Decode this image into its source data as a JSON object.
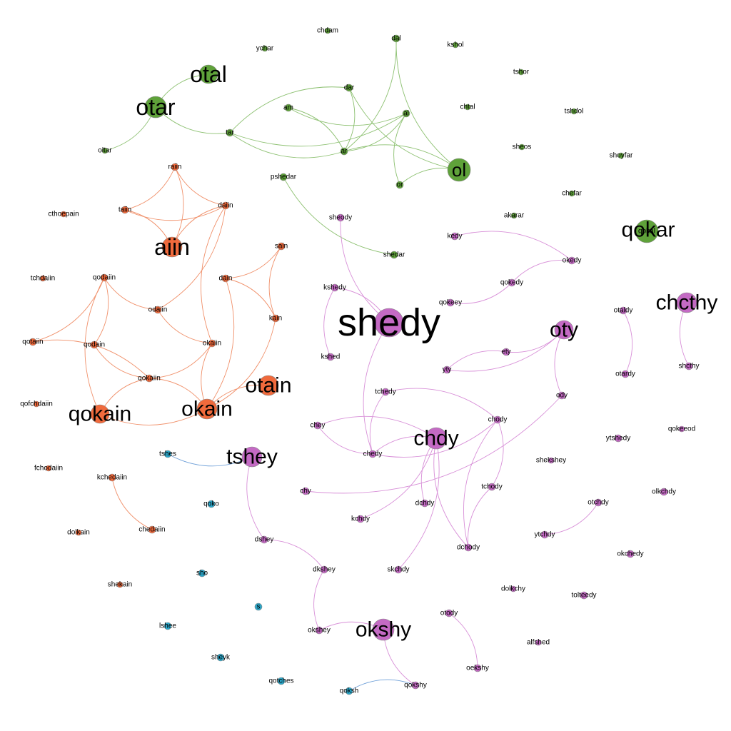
{
  "colors": {
    "green": "#5fa23a",
    "orange": "#f06a3c",
    "pink": "#c46ac4",
    "blue": "#2ba6c8",
    "edge_green": "#8cc070",
    "edge_orange": "#f0906a",
    "edge_pink": "#d890d8",
    "edge_blue": "#6fa0d8"
  },
  "nodes": [
    {
      "id": "chdam",
      "label": "chdam",
      "group": "green"
    },
    {
      "id": "dal",
      "label": "dal",
      "group": "green"
    },
    {
      "id": "kshol",
      "label": "kshol",
      "group": "green"
    },
    {
      "id": "ychar",
      "label": "ychar",
      "group": "green"
    },
    {
      "id": "otal",
      "label": "otal",
      "group": "green"
    },
    {
      "id": "otar",
      "label": "otar",
      "group": "green"
    },
    {
      "id": "dar",
      "label": "dar",
      "group": "green"
    },
    {
      "id": "am",
      "label": "am",
      "group": "green"
    },
    {
      "id": "al",
      "label": "al",
      "group": "green"
    },
    {
      "id": "tar",
      "label": "tar",
      "group": "green"
    },
    {
      "id": "ar",
      "label": "ar",
      "group": "green"
    },
    {
      "id": "oltar",
      "label": "oltar",
      "group": "green"
    },
    {
      "id": "ol",
      "label": "ol",
      "group": "green"
    },
    {
      "id": "or",
      "label": "or",
      "group": "green"
    },
    {
      "id": "pshedar",
      "label": "pshedar",
      "group": "green"
    },
    {
      "id": "shedar",
      "label": "shedar",
      "group": "green"
    },
    {
      "id": "tshor",
      "label": "tshor",
      "group": "green"
    },
    {
      "id": "chtal",
      "label": "chtal",
      "group": "green"
    },
    {
      "id": "tshdol",
      "label": "tshdol",
      "group": "green"
    },
    {
      "id": "sheos",
      "label": "sheos",
      "group": "green"
    },
    {
      "id": "shoyfar",
      "label": "shoyfar",
      "group": "green"
    },
    {
      "id": "chefar",
      "label": "chefar",
      "group": "green"
    },
    {
      "id": "akarar",
      "label": "akarar",
      "group": "green"
    },
    {
      "id": "qokal",
      "label": "qokal",
      "group": "green"
    },
    {
      "id": "qokar",
      "label": "qokar",
      "group": "green"
    },
    {
      "id": "raiin",
      "label": "raiin",
      "group": "orange"
    },
    {
      "id": "taiin",
      "label": "taiin",
      "group": "orange"
    },
    {
      "id": "daiin",
      "label": "daiin",
      "group": "orange"
    },
    {
      "id": "aiin",
      "label": "aiin",
      "group": "orange"
    },
    {
      "id": "cthoepain",
      "label": "cthoepain",
      "group": "orange"
    },
    {
      "id": "sain",
      "label": "sain",
      "group": "orange"
    },
    {
      "id": "dain",
      "label": "dain",
      "group": "orange"
    },
    {
      "id": "tchdaiin",
      "label": "tchdaiin",
      "group": "orange"
    },
    {
      "id": "qodaiin",
      "label": "qodaiin",
      "group": "orange"
    },
    {
      "id": "odaiin",
      "label": "odaiin",
      "group": "orange"
    },
    {
      "id": "kain",
      "label": "kain",
      "group": "orange"
    },
    {
      "id": "qotaiin",
      "label": "qotaiin",
      "group": "orange"
    },
    {
      "id": "qodain",
      "label": "qodain",
      "group": "orange"
    },
    {
      "id": "okaiin",
      "label": "okaiin",
      "group": "orange"
    },
    {
      "id": "qokaiin",
      "label": "qokaiin",
      "group": "orange"
    },
    {
      "id": "otain",
      "label": "otain",
      "group": "orange"
    },
    {
      "id": "qofchdaiin",
      "label": "qofchdaiin",
      "group": "orange"
    },
    {
      "id": "qokain",
      "label": "qokain",
      "group": "orange"
    },
    {
      "id": "okain",
      "label": "okain",
      "group": "orange"
    },
    {
      "id": "fchodaiin",
      "label": "fchodaiin",
      "group": "orange"
    },
    {
      "id": "kchedaiin",
      "label": "kchedaiin",
      "group": "orange"
    },
    {
      "id": "chedaiin",
      "label": "chedaiin",
      "group": "orange"
    },
    {
      "id": "dolkain",
      "label": "dolkain",
      "group": "orange"
    },
    {
      "id": "shekain",
      "label": "shekain",
      "group": "orange"
    },
    {
      "id": "sheody",
      "label": "sheody",
      "group": "pink"
    },
    {
      "id": "kedy",
      "label": "kedy",
      "group": "pink"
    },
    {
      "id": "okedy",
      "label": "okedy",
      "group": "pink"
    },
    {
      "id": "qokedy",
      "label": "qokedy",
      "group": "pink"
    },
    {
      "id": "qokeey",
      "label": "qokeey",
      "group": "pink"
    },
    {
      "id": "kshedy",
      "label": "kshedy",
      "group": "pink"
    },
    {
      "id": "shedy",
      "label": "shedy",
      "group": "pink"
    },
    {
      "id": "kshed",
      "label": "kshed",
      "group": "pink"
    },
    {
      "id": "chcthy",
      "label": "chcthy",
      "group": "pink"
    },
    {
      "id": "otaldy",
      "label": "otaldy",
      "group": "pink"
    },
    {
      "id": "oty",
      "label": "oty",
      "group": "pink"
    },
    {
      "id": "ety",
      "label": "ety",
      "group": "pink"
    },
    {
      "id": "yty",
      "label": "yty",
      "group": "pink"
    },
    {
      "id": "shcthy",
      "label": "shcthy",
      "group": "pink"
    },
    {
      "id": "otardy",
      "label": "otardy",
      "group": "pink"
    },
    {
      "id": "tchedy",
      "label": "tchedy",
      "group": "pink"
    },
    {
      "id": "ody",
      "label": "ody",
      "group": "pink"
    },
    {
      "id": "chody",
      "label": "chody",
      "group": "pink"
    },
    {
      "id": "chey",
      "label": "chey",
      "group": "pink"
    },
    {
      "id": "chdy",
      "label": "chdy",
      "group": "pink"
    },
    {
      "id": "chedy",
      "label": "chedy",
      "group": "pink"
    },
    {
      "id": "ytshedy",
      "label": "ytshedy",
      "group": "pink"
    },
    {
      "id": "qokeeod",
      "label": "qokeeod",
      "group": "pink"
    },
    {
      "id": "tshey",
      "label": "tshey",
      "group": "pink"
    },
    {
      "id": "shekshey",
      "label": "shekshey",
      "group": "pink"
    },
    {
      "id": "chy",
      "label": "chy",
      "group": "pink"
    },
    {
      "id": "tchody",
      "label": "tchody",
      "group": "pink"
    },
    {
      "id": "olkchdy",
      "label": "olkchdy",
      "group": "pink"
    },
    {
      "id": "kchdy",
      "label": "kchdy",
      "group": "pink"
    },
    {
      "id": "dchdy",
      "label": "dchdy",
      "group": "pink"
    },
    {
      "id": "otchdy",
      "label": "otchdy",
      "group": "pink"
    },
    {
      "id": "dshey",
      "label": "dshey",
      "group": "pink"
    },
    {
      "id": "ytchdy",
      "label": "ytchdy",
      "group": "pink"
    },
    {
      "id": "dchody",
      "label": "dchody",
      "group": "pink"
    },
    {
      "id": "okchedy",
      "label": "okchedy",
      "group": "pink"
    },
    {
      "id": "dkshey",
      "label": "dkshey",
      "group": "pink"
    },
    {
      "id": "skchdy",
      "label": "skchdy",
      "group": "pink"
    },
    {
      "id": "dolkchy",
      "label": "dolkchy",
      "group": "pink"
    },
    {
      "id": "tolteedy",
      "label": "tolteedy",
      "group": "pink"
    },
    {
      "id": "otody",
      "label": "otody",
      "group": "pink"
    },
    {
      "id": "okshey",
      "label": "okshey",
      "group": "pink"
    },
    {
      "id": "okshy",
      "label": "okshy",
      "group": "pink"
    },
    {
      "id": "alfshed",
      "label": "alfshed",
      "group": "pink"
    },
    {
      "id": "oekshy",
      "label": "oekshy",
      "group": "pink"
    },
    {
      "id": "qokshy",
      "label": "qokshy",
      "group": "pink"
    },
    {
      "id": "tshes",
      "label": "tshes",
      "group": "blue"
    },
    {
      "id": "qoko",
      "label": "qoko",
      "group": "blue"
    },
    {
      "id": "sho",
      "label": "sho",
      "group": "blue"
    },
    {
      "id": "s",
      "label": "s",
      "group": "blue"
    },
    {
      "id": "lshee",
      "label": "lshee",
      "group": "blue"
    },
    {
      "id": "sheyk",
      "label": "sheyk",
      "group": "blue"
    },
    {
      "id": "qotches",
      "label": "qotches",
      "group": "blue"
    },
    {
      "id": "qoksh",
      "label": "qoksh",
      "group": "blue"
    }
  ],
  "edges": [
    [
      "otal",
      "otar"
    ],
    [
      "otar",
      "oltar"
    ],
    [
      "otar",
      "tar"
    ],
    [
      "tar",
      "dar"
    ],
    [
      "tar",
      "al"
    ],
    [
      "am",
      "ar"
    ],
    [
      "am",
      "al"
    ],
    [
      "dal",
      "ar"
    ],
    [
      "dal",
      "ol"
    ],
    [
      "dar",
      "ar"
    ],
    [
      "dar",
      "ol"
    ],
    [
      "al",
      "ar"
    ],
    [
      "al",
      "or"
    ],
    [
      "ar",
      "ol"
    ],
    [
      "tar",
      "ar"
    ],
    [
      "or",
      "ol"
    ],
    [
      "pshedar",
      "shedar"
    ],
    [
      "raiin",
      "taiin"
    ],
    [
      "raiin",
      "daiin"
    ],
    [
      "raiin",
      "aiin"
    ],
    [
      "taiin",
      "daiin"
    ],
    [
      "taiin",
      "aiin"
    ],
    [
      "daiin",
      "aiin"
    ],
    [
      "daiin",
      "odaiin"
    ],
    [
      "daiin",
      "okaiin"
    ],
    [
      "sain",
      "dain"
    ],
    [
      "sain",
      "kain"
    ],
    [
      "dain",
      "kain"
    ],
    [
      "qodaiin",
      "odaiin"
    ],
    [
      "qodaiin",
      "qotaiin"
    ],
    [
      "qodaiin",
      "qokain"
    ],
    [
      "qodaiin",
      "qodain"
    ],
    [
      "odaiin",
      "okaiin"
    ],
    [
      "qotaiin",
      "qokaiin"
    ],
    [
      "qodain",
      "qokaiin"
    ],
    [
      "okaiin",
      "qokaiin"
    ],
    [
      "okaiin",
      "okain"
    ],
    [
      "qokaiin",
      "okain"
    ],
    [
      "qokain",
      "okain"
    ],
    [
      "okain",
      "otain"
    ],
    [
      "okain",
      "kain"
    ],
    [
      "dain",
      "okain"
    ],
    [
      "kchedaiin",
      "chedaiin"
    ],
    [
      "qokain",
      "qokaiin"
    ],
    [
      "sheody",
      "shedy"
    ],
    [
      "kedy",
      "okedy"
    ],
    [
      "okedy",
      "qokedy"
    ],
    [
      "qokedy",
      "qokeey"
    ],
    [
      "kshedy",
      "kshed"
    ],
    [
      "kshedy",
      "shedy"
    ],
    [
      "shedy",
      "chedy"
    ],
    [
      "otaldy",
      "otardy"
    ],
    [
      "chcthy",
      "shcthy"
    ],
    [
      "oty",
      "ety"
    ],
    [
      "ety",
      "yty"
    ],
    [
      "oty",
      "yty"
    ],
    [
      "oty",
      "ody"
    ],
    [
      "ody",
      "chy"
    ],
    [
      "tchedy",
      "chedy"
    ],
    [
      "tchedy",
      "chody"
    ],
    [
      "chey",
      "chedy"
    ],
    [
      "chey",
      "chdy"
    ],
    [
      "chdy",
      "chedy"
    ],
    [
      "chdy",
      "kchdy"
    ],
    [
      "chdy",
      "dchdy"
    ],
    [
      "chdy",
      "skchdy"
    ],
    [
      "chdy",
      "dchody"
    ],
    [
      "chody",
      "tchody"
    ],
    [
      "chody",
      "dchody"
    ],
    [
      "chody",
      "chedy"
    ],
    [
      "tchody",
      "dchody"
    ],
    [
      "otchdy",
      "ytchdy"
    ],
    [
      "tshey",
      "dshey"
    ],
    [
      "dshey",
      "dkshey"
    ],
    [
      "dkshey",
      "okshey"
    ],
    [
      "okshey",
      "okshy"
    ],
    [
      "okshy",
      "qokshy"
    ],
    [
      "otody",
      "oekshy"
    ],
    [
      "tshes",
      "tshey"
    ],
    [
      "qoksh",
      "qokshy"
    ]
  ]
}
